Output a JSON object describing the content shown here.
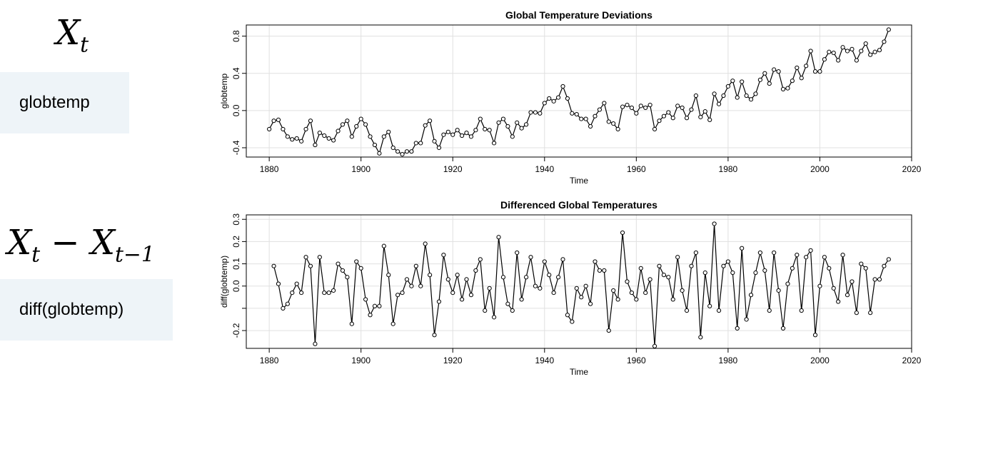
{
  "formulas": {
    "first": {
      "base": "X",
      "sub": "t"
    },
    "second": {
      "base1": "X",
      "sub1": "t",
      "op": " − ",
      "base2": "X",
      "sub2": "t−1"
    }
  },
  "code": {
    "first": "globtemp",
    "second": "diff(globtemp)"
  },
  "colors": {
    "code_bg": "#eef4f8",
    "line": "#000000",
    "grid": "#e0e0e0"
  },
  "chart_data": [
    {
      "type": "line",
      "title": "Global Temperature Deviations",
      "xlabel": "Time",
      "ylabel": "globtemp",
      "xlim": [
        1875,
        2020
      ],
      "ylim": [
        -0.5,
        0.92
      ],
      "xticks": [
        1880,
        1900,
        1920,
        1940,
        1960,
        1980,
        2000,
        2020
      ],
      "yticks": [
        -0.4,
        0.0,
        0.4,
        0.8
      ],
      "yticklabels": [
        "-0.4",
        "0.0",
        "0.4",
        "0.8"
      ],
      "grid": true,
      "x_start": 1880,
      "values": [
        -0.2,
        -0.11,
        -0.1,
        -0.2,
        -0.28,
        -0.31,
        -0.3,
        -0.33,
        -0.2,
        -0.11,
        -0.37,
        -0.24,
        -0.27,
        -0.3,
        -0.32,
        -0.22,
        -0.15,
        -0.11,
        -0.28,
        -0.17,
        -0.09,
        -0.15,
        -0.28,
        -0.37,
        -0.46,
        -0.28,
        -0.23,
        -0.4,
        -0.44,
        -0.47,
        -0.44,
        -0.44,
        -0.35,
        -0.35,
        -0.16,
        -0.11,
        -0.33,
        -0.4,
        -0.26,
        -0.23,
        -0.26,
        -0.21,
        -0.27,
        -0.24,
        -0.28,
        -0.21,
        -0.09,
        -0.2,
        -0.21,
        -0.35,
        -0.13,
        -0.09,
        -0.17,
        -0.28,
        -0.13,
        -0.19,
        -0.15,
        -0.02,
        -0.02,
        -0.03,
        0.08,
        0.13,
        0.1,
        0.14,
        0.26,
        0.13,
        -0.03,
        -0.04,
        -0.09,
        -0.09,
        -0.17,
        -0.06,
        0.01,
        0.08,
        -0.12,
        -0.14,
        -0.2,
        0.04,
        0.06,
        0.03,
        -0.03,
        0.05,
        0.03,
        0.06,
        -0.2,
        -0.11,
        -0.06,
        -0.02,
        -0.08,
        0.05,
        0.03,
        -0.08,
        0.01,
        0.16,
        -0.07,
        -0.01,
        -0.1,
        0.18,
        0.07,
        0.16,
        0.26,
        0.32,
        0.14,
        0.31,
        0.16,
        0.12,
        0.18,
        0.33,
        0.4,
        0.29,
        0.44,
        0.42,
        0.23,
        0.24,
        0.32,
        0.46,
        0.35,
        0.48,
        0.64,
        0.42,
        0.42,
        0.55,
        0.63,
        0.62,
        0.54,
        0.68,
        0.64,
        0.66,
        0.54,
        0.64,
        0.72,
        0.6,
        0.63,
        0.65,
        0.74,
        0.87
      ]
    },
    {
      "type": "line",
      "title": "Differenced Global Temperatures",
      "xlabel": "Time",
      "ylabel": "diff(globtemp)",
      "xlim": [
        1875,
        2020
      ],
      "ylim": [
        -0.28,
        0.32
      ],
      "xticks": [
        1880,
        1900,
        1920,
        1940,
        1960,
        1980,
        2000,
        2020
      ],
      "yticks": [
        -0.2,
        -0.1,
        0.0,
        0.1,
        0.2,
        0.3
      ],
      "yticklabels": [
        "-0.2",
        "",
        "0.0",
        "0.1",
        "0.2",
        "0.3"
      ],
      "grid": true,
      "x_start": 1881,
      "values": [
        0.09,
        0.01,
        -0.1,
        -0.08,
        -0.03,
        0.01,
        -0.03,
        0.13,
        0.09,
        -0.26,
        0.13,
        -0.03,
        -0.03,
        -0.02,
        0.1,
        0.07,
        0.04,
        -0.17,
        0.11,
        0.08,
        -0.06,
        -0.13,
        -0.09,
        -0.09,
        0.18,
        0.05,
        -0.17,
        -0.04,
        -0.03,
        0.03,
        0.0,
        0.09,
        0.0,
        0.19,
        0.05,
        -0.22,
        -0.07,
        0.14,
        0.03,
        -0.03,
        0.05,
        -0.06,
        0.03,
        -0.04,
        0.07,
        0.12,
        -0.11,
        -0.01,
        -0.14,
        0.22,
        0.04,
        -0.08,
        -0.11,
        0.15,
        -0.06,
        0.04,
        0.13,
        0.0,
        -0.01,
        0.11,
        0.05,
        -0.03,
        0.04,
        0.12,
        -0.13,
        -0.16,
        -0.01,
        -0.05,
        0.0,
        -0.08,
        0.11,
        0.07,
        0.07,
        -0.2,
        -0.02,
        -0.06,
        0.24,
        0.02,
        -0.03,
        -0.06,
        0.08,
        -0.03,
        0.03,
        -0.27,
        0.09,
        0.05,
        0.04,
        -0.06,
        0.13,
        -0.02,
        -0.11,
        0.09,
        0.15,
        -0.23,
        0.06,
        -0.09,
        0.28,
        -0.11,
        0.09,
        0.11,
        0.06,
        -0.19,
        0.17,
        -0.15,
        -0.04,
        0.06,
        0.15,
        0.07,
        -0.11,
        0.15,
        -0.02,
        -0.19,
        0.01,
        0.08,
        0.14,
        -0.11,
        0.13,
        0.16,
        -0.22,
        0.0,
        0.13,
        0.08,
        -0.01,
        -0.07,
        0.14,
        -0.04,
        0.02,
        -0.12,
        0.1,
        0.08,
        -0.12,
        0.03,
        0.03,
        0.09,
        0.12
      ]
    }
  ]
}
